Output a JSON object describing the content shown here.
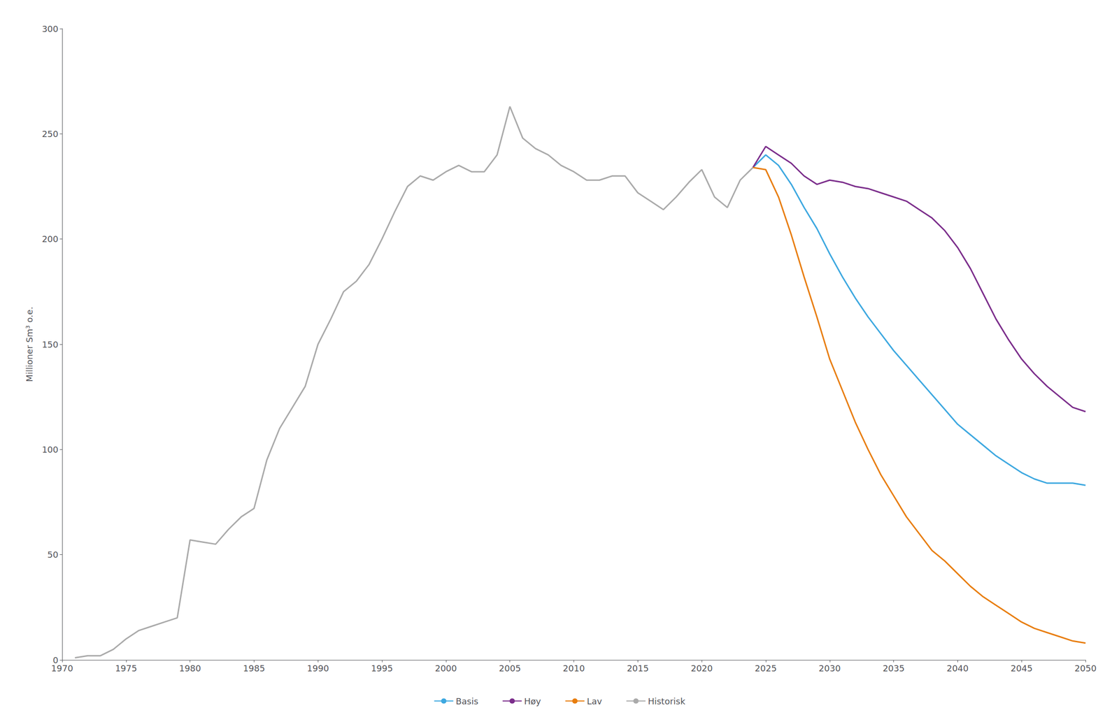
{
  "chart_data": {
    "type": "line",
    "ylabel": "Millioner Sm³ o.e.",
    "xlim": [
      1970,
      2050
    ],
    "xticks": [
      1970,
      1975,
      1980,
      1985,
      1990,
      1995,
      2000,
      2005,
      2010,
      2015,
      2020,
      2025,
      2030,
      2035,
      2040,
      2045,
      2050
    ],
    "ylim": [
      0,
      300
    ],
    "yticks": [
      0,
      50,
      100,
      150,
      200,
      250,
      300
    ],
    "grid": false,
    "legend": "bottom",
    "series": [
      {
        "name": "Basis",
        "color": "#3da8e0",
        "x": [
          2024,
          2025,
          2026,
          2027,
          2028,
          2029,
          2030,
          2031,
          2032,
          2033,
          2034,
          2035,
          2036,
          2037,
          2038,
          2039,
          2040,
          2041,
          2042,
          2043,
          2044,
          2045,
          2046,
          2047,
          2048,
          2049,
          2050
        ],
        "values": [
          234,
          240,
          235,
          226,
          215,
          205,
          193,
          182,
          172,
          163,
          155,
          147,
          140,
          133,
          126,
          119,
          112,
          107,
          102,
          97,
          93,
          89,
          86,
          84,
          84,
          84,
          83
        ]
      },
      {
        "name": "Høy",
        "color": "#7B2D8B",
        "x": [
          2024,
          2025,
          2026,
          2027,
          2028,
          2029,
          2030,
          2031,
          2032,
          2033,
          2034,
          2035,
          2036,
          2037,
          2038,
          2039,
          2040,
          2041,
          2042,
          2043,
          2044,
          2045,
          2046,
          2047,
          2048,
          2049,
          2050
        ],
        "values": [
          234,
          244,
          240,
          236,
          230,
          226,
          228,
          227,
          225,
          224,
          222,
          220,
          218,
          214,
          210,
          204,
          196,
          186,
          174,
          162,
          152,
          143,
          136,
          130,
          125,
          120,
          118
        ]
      },
      {
        "name": "Lav",
        "color": "#E87D0D",
        "x": [
          2024,
          2025,
          2026,
          2027,
          2028,
          2029,
          2030,
          2031,
          2032,
          2033,
          2034,
          2035,
          2036,
          2037,
          2038,
          2039,
          2040,
          2041,
          2042,
          2043,
          2044,
          2045,
          2046,
          2047,
          2048,
          2049,
          2050
        ],
        "values": [
          234,
          233,
          220,
          202,
          182,
          163,
          143,
          128,
          113,
          100,
          88,
          78,
          68,
          60,
          52,
          47,
          41,
          35,
          30,
          26,
          22,
          18,
          15,
          13,
          11,
          9,
          8
        ]
      },
      {
        "name": "Historisk",
        "color": "#aaaaaa",
        "x": [
          1971,
          1972,
          1973,
          1974,
          1975,
          1976,
          1977,
          1978,
          1979,
          1980,
          1981,
          1982,
          1983,
          1984,
          1985,
          1986,
          1987,
          1988,
          1989,
          1990,
          1991,
          1992,
          1993,
          1994,
          1995,
          1996,
          1997,
          1998,
          1999,
          2000,
          2001,
          2002,
          2003,
          2004,
          2005,
          2006,
          2007,
          2008,
          2009,
          2010,
          2011,
          2012,
          2013,
          2014,
          2015,
          2016,
          2017,
          2018,
          2019,
          2020,
          2021,
          2022,
          2023,
          2024
        ],
        "values": [
          1,
          2,
          2,
          5,
          10,
          14,
          16,
          18,
          20,
          57,
          56,
          55,
          62,
          68,
          72,
          95,
          110,
          120,
          130,
          150,
          162,
          175,
          180,
          188,
          200,
          213,
          225,
          230,
          228,
          232,
          235,
          232,
          232,
          240,
          263,
          248,
          243,
          240,
          235,
          232,
          228,
          228,
          230,
          230,
          222,
          218,
          214,
          220,
          227,
          233,
          220,
          215,
          228,
          234
        ]
      }
    ]
  }
}
